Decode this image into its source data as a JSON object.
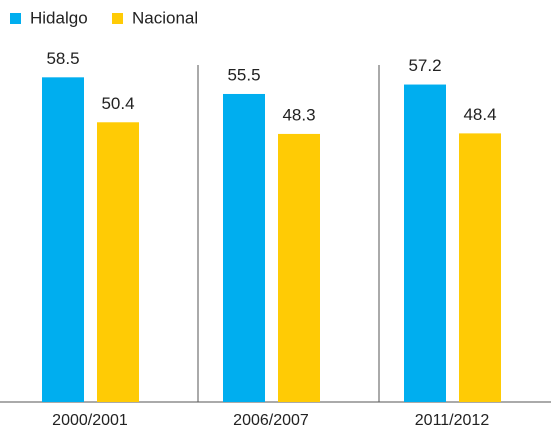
{
  "chart_data": {
    "type": "bar",
    "categories": [
      "2000/2001",
      "2006/2007",
      "2011/2012"
    ],
    "series": [
      {
        "name": "Hidalgo",
        "color": "#00aeef",
        "values": [
          58.5,
          55.5,
          57.2
        ]
      },
      {
        "name": "Nacional",
        "color": "#ffcb05",
        "values": [
          50.4,
          48.3,
          48.4
        ]
      }
    ],
    "ylim": [
      0,
      60
    ]
  }
}
